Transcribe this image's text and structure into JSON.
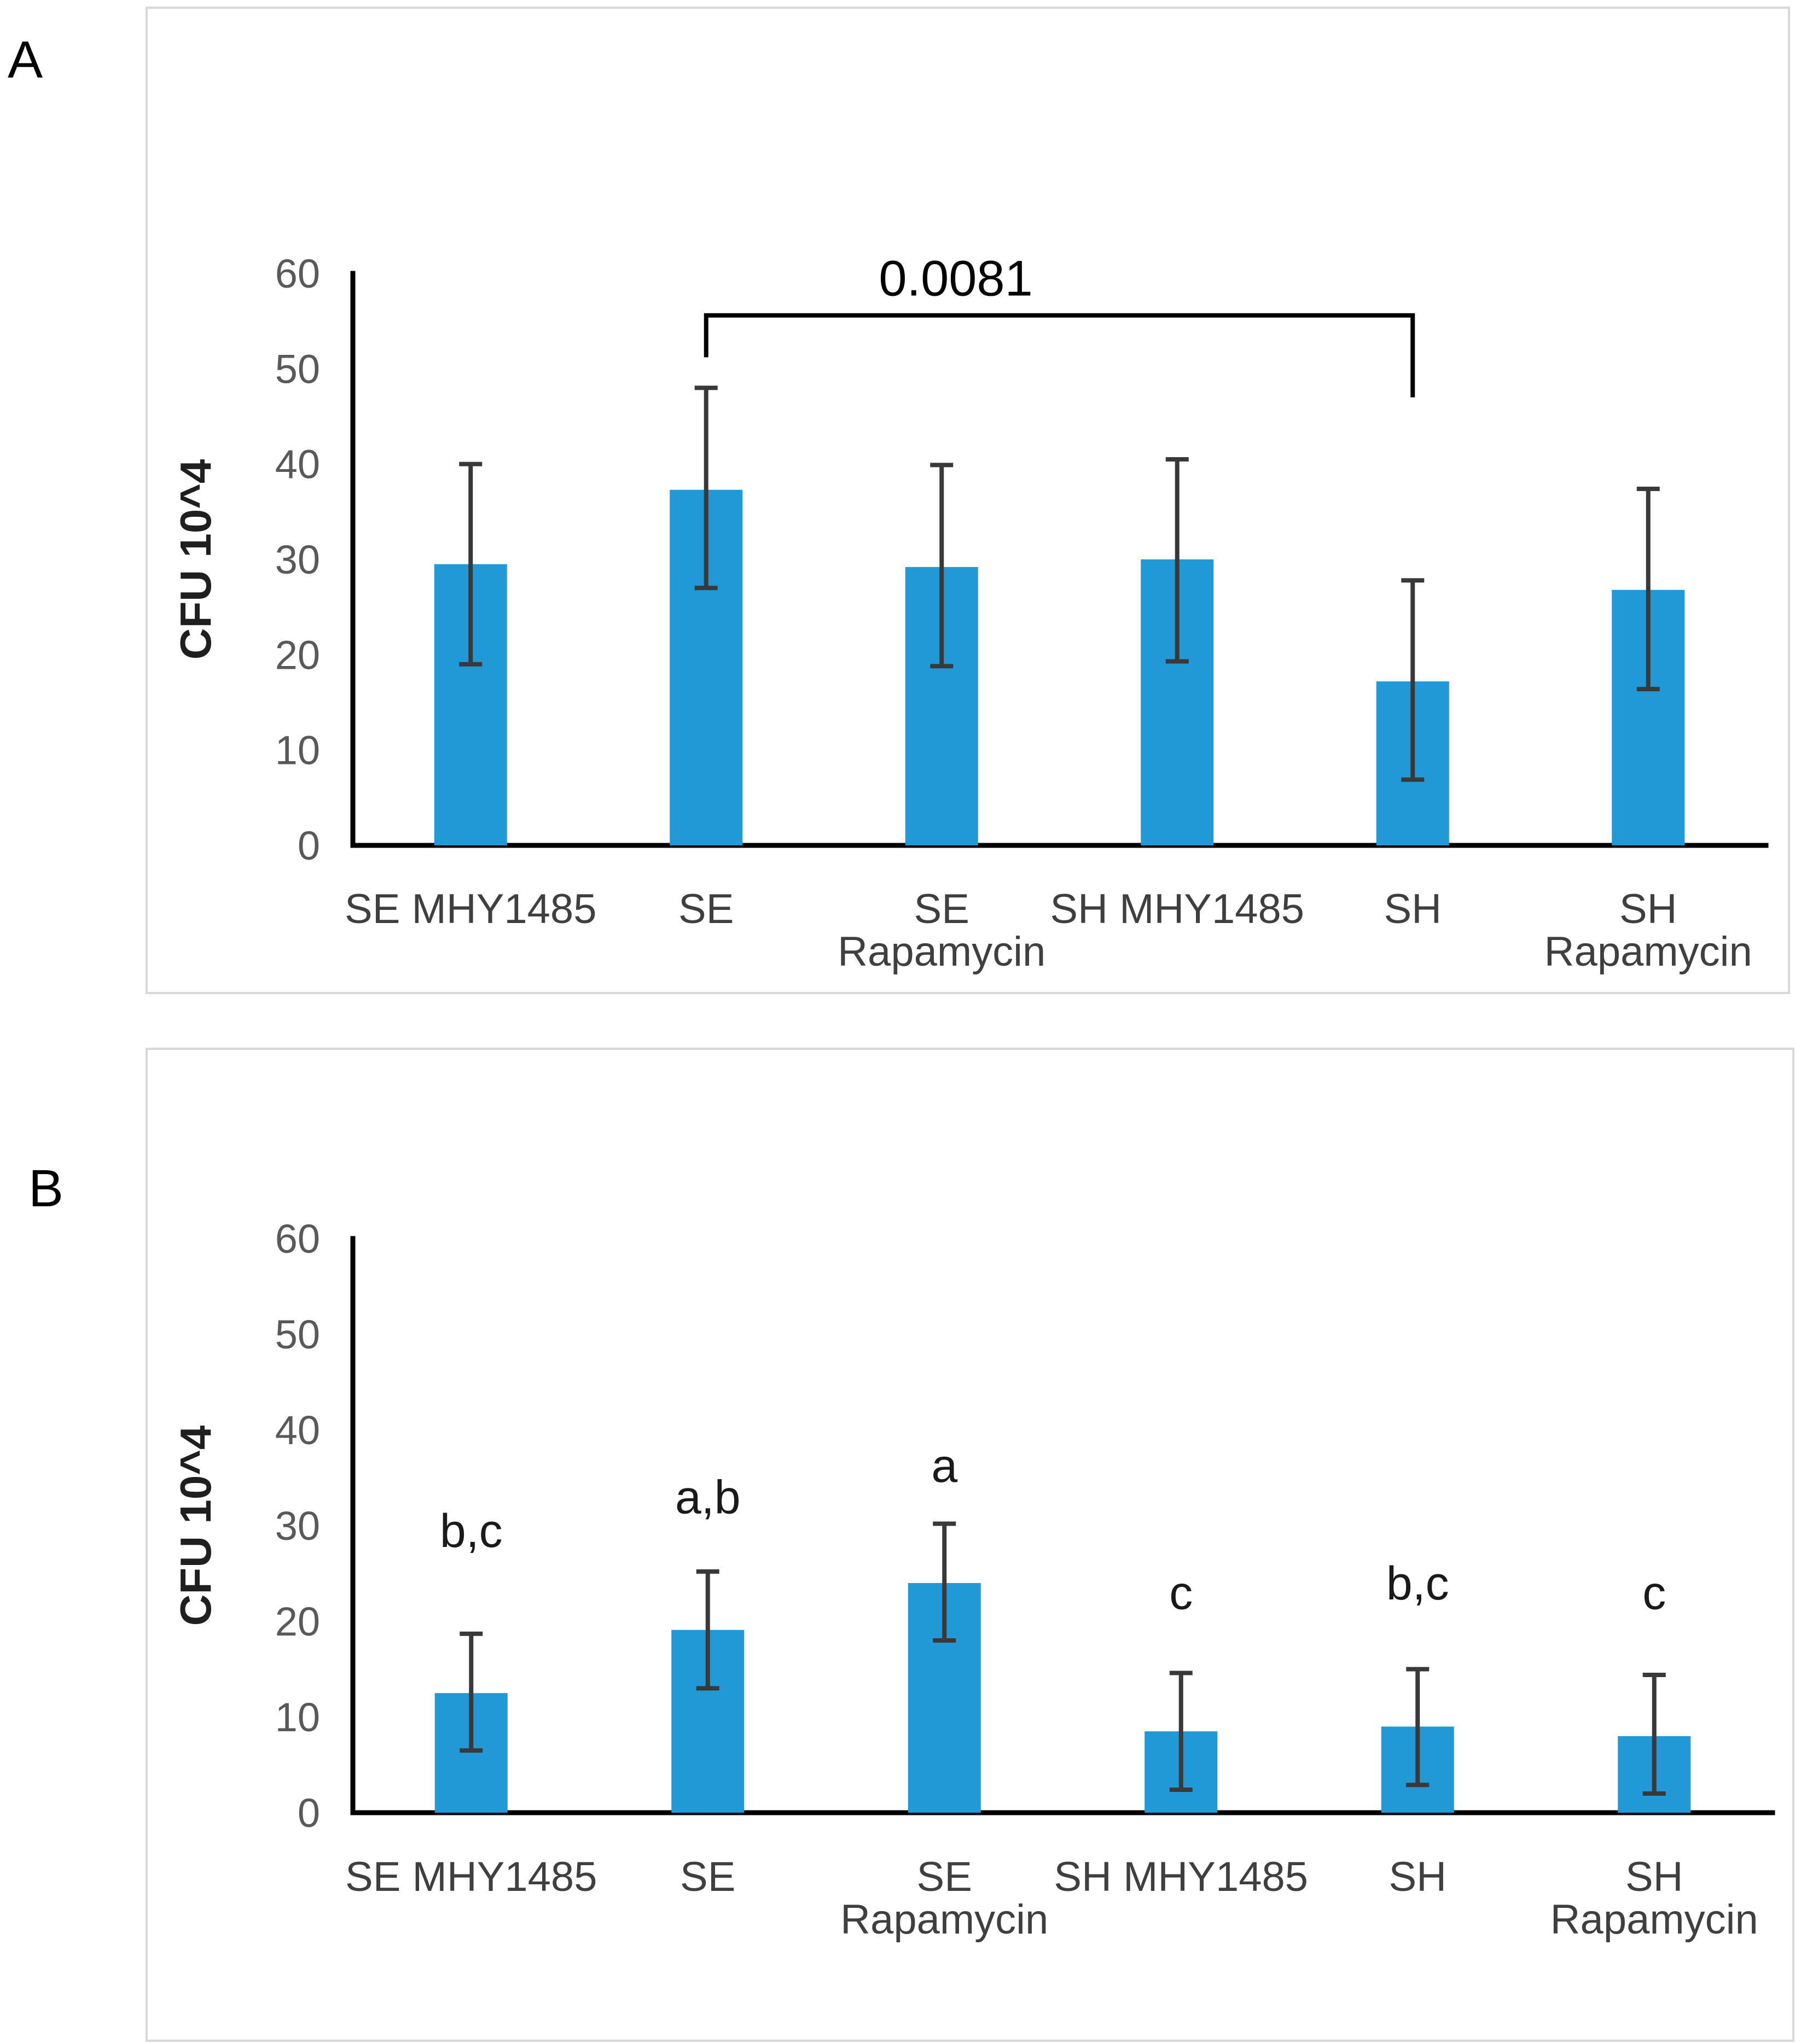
{
  "page": {
    "background": "#ffffff"
  },
  "panels": [
    {
      "label": "A"
    },
    {
      "label": "B"
    }
  ],
  "chart_data": [
    {
      "type": "bar",
      "panel": "A",
      "title": "",
      "xlabel": "",
      "ylabel": "CFU 10^4",
      "ylim": [
        0,
        60
      ],
      "yticks": [
        0,
        10,
        20,
        30,
        40,
        50,
        60
      ],
      "grid": false,
      "legend": "none",
      "categories": [
        "SE MHY1485",
        "SE",
        "SE\nRapamycin",
        "SH MHY1485",
        "SH",
        "SH\nRapamycin"
      ],
      "values": [
        29.5,
        37.3,
        29.2,
        30.0,
        17.2,
        26.8
      ],
      "error_up": [
        10.5,
        10.7,
        10.7,
        10.5,
        10.6,
        10.6
      ],
      "error_down": [
        10.5,
        10.3,
        10.4,
        10.7,
        10.3,
        10.4
      ],
      "bar_color": "#2199d6",
      "error_color": "#3b3838",
      "axis_color": "#000000",
      "significance": {
        "label": "0.0081",
        "from_index": 1,
        "to_index": 4,
        "bar_value": 55.6,
        "left_end_value": 51.2,
        "right_end_value": 47.0
      }
    },
    {
      "type": "bar",
      "panel": "B",
      "title": "",
      "xlabel": "",
      "ylabel": "CFU 10^4",
      "ylim": [
        0,
        60
      ],
      "yticks": [
        0,
        10,
        20,
        30,
        40,
        50,
        60
      ],
      "grid": false,
      "legend": "none",
      "categories": [
        "SE MHY1485",
        "SE",
        "SE\nRapamycin",
        "SH MHY1485",
        "SH",
        "SH\nRapamycin"
      ],
      "values": [
        12.5,
        19.1,
        24.0,
        8.5,
        9.0,
        8.0
      ],
      "error_up": [
        6.2,
        6.1,
        6.2,
        6.1,
        6.0,
        6.4
      ],
      "error_down": [
        6.0,
        6.1,
        6.0,
        6.1,
        6.1,
        6.0
      ],
      "bar_color": "#2199d6",
      "error_color": "#3b3838",
      "axis_color": "#000000",
      "annotations": [
        {
          "text": "b,c",
          "value": 29.5
        },
        {
          "text": "a,b",
          "value": 33.0
        },
        {
          "text": "a",
          "value": 36.3
        },
        {
          "text": "c",
          "value": 23.0
        },
        {
          "text": "b,c",
          "value": 24.0
        },
        {
          "text": "c",
          "value": 23.0
        }
      ]
    }
  ]
}
